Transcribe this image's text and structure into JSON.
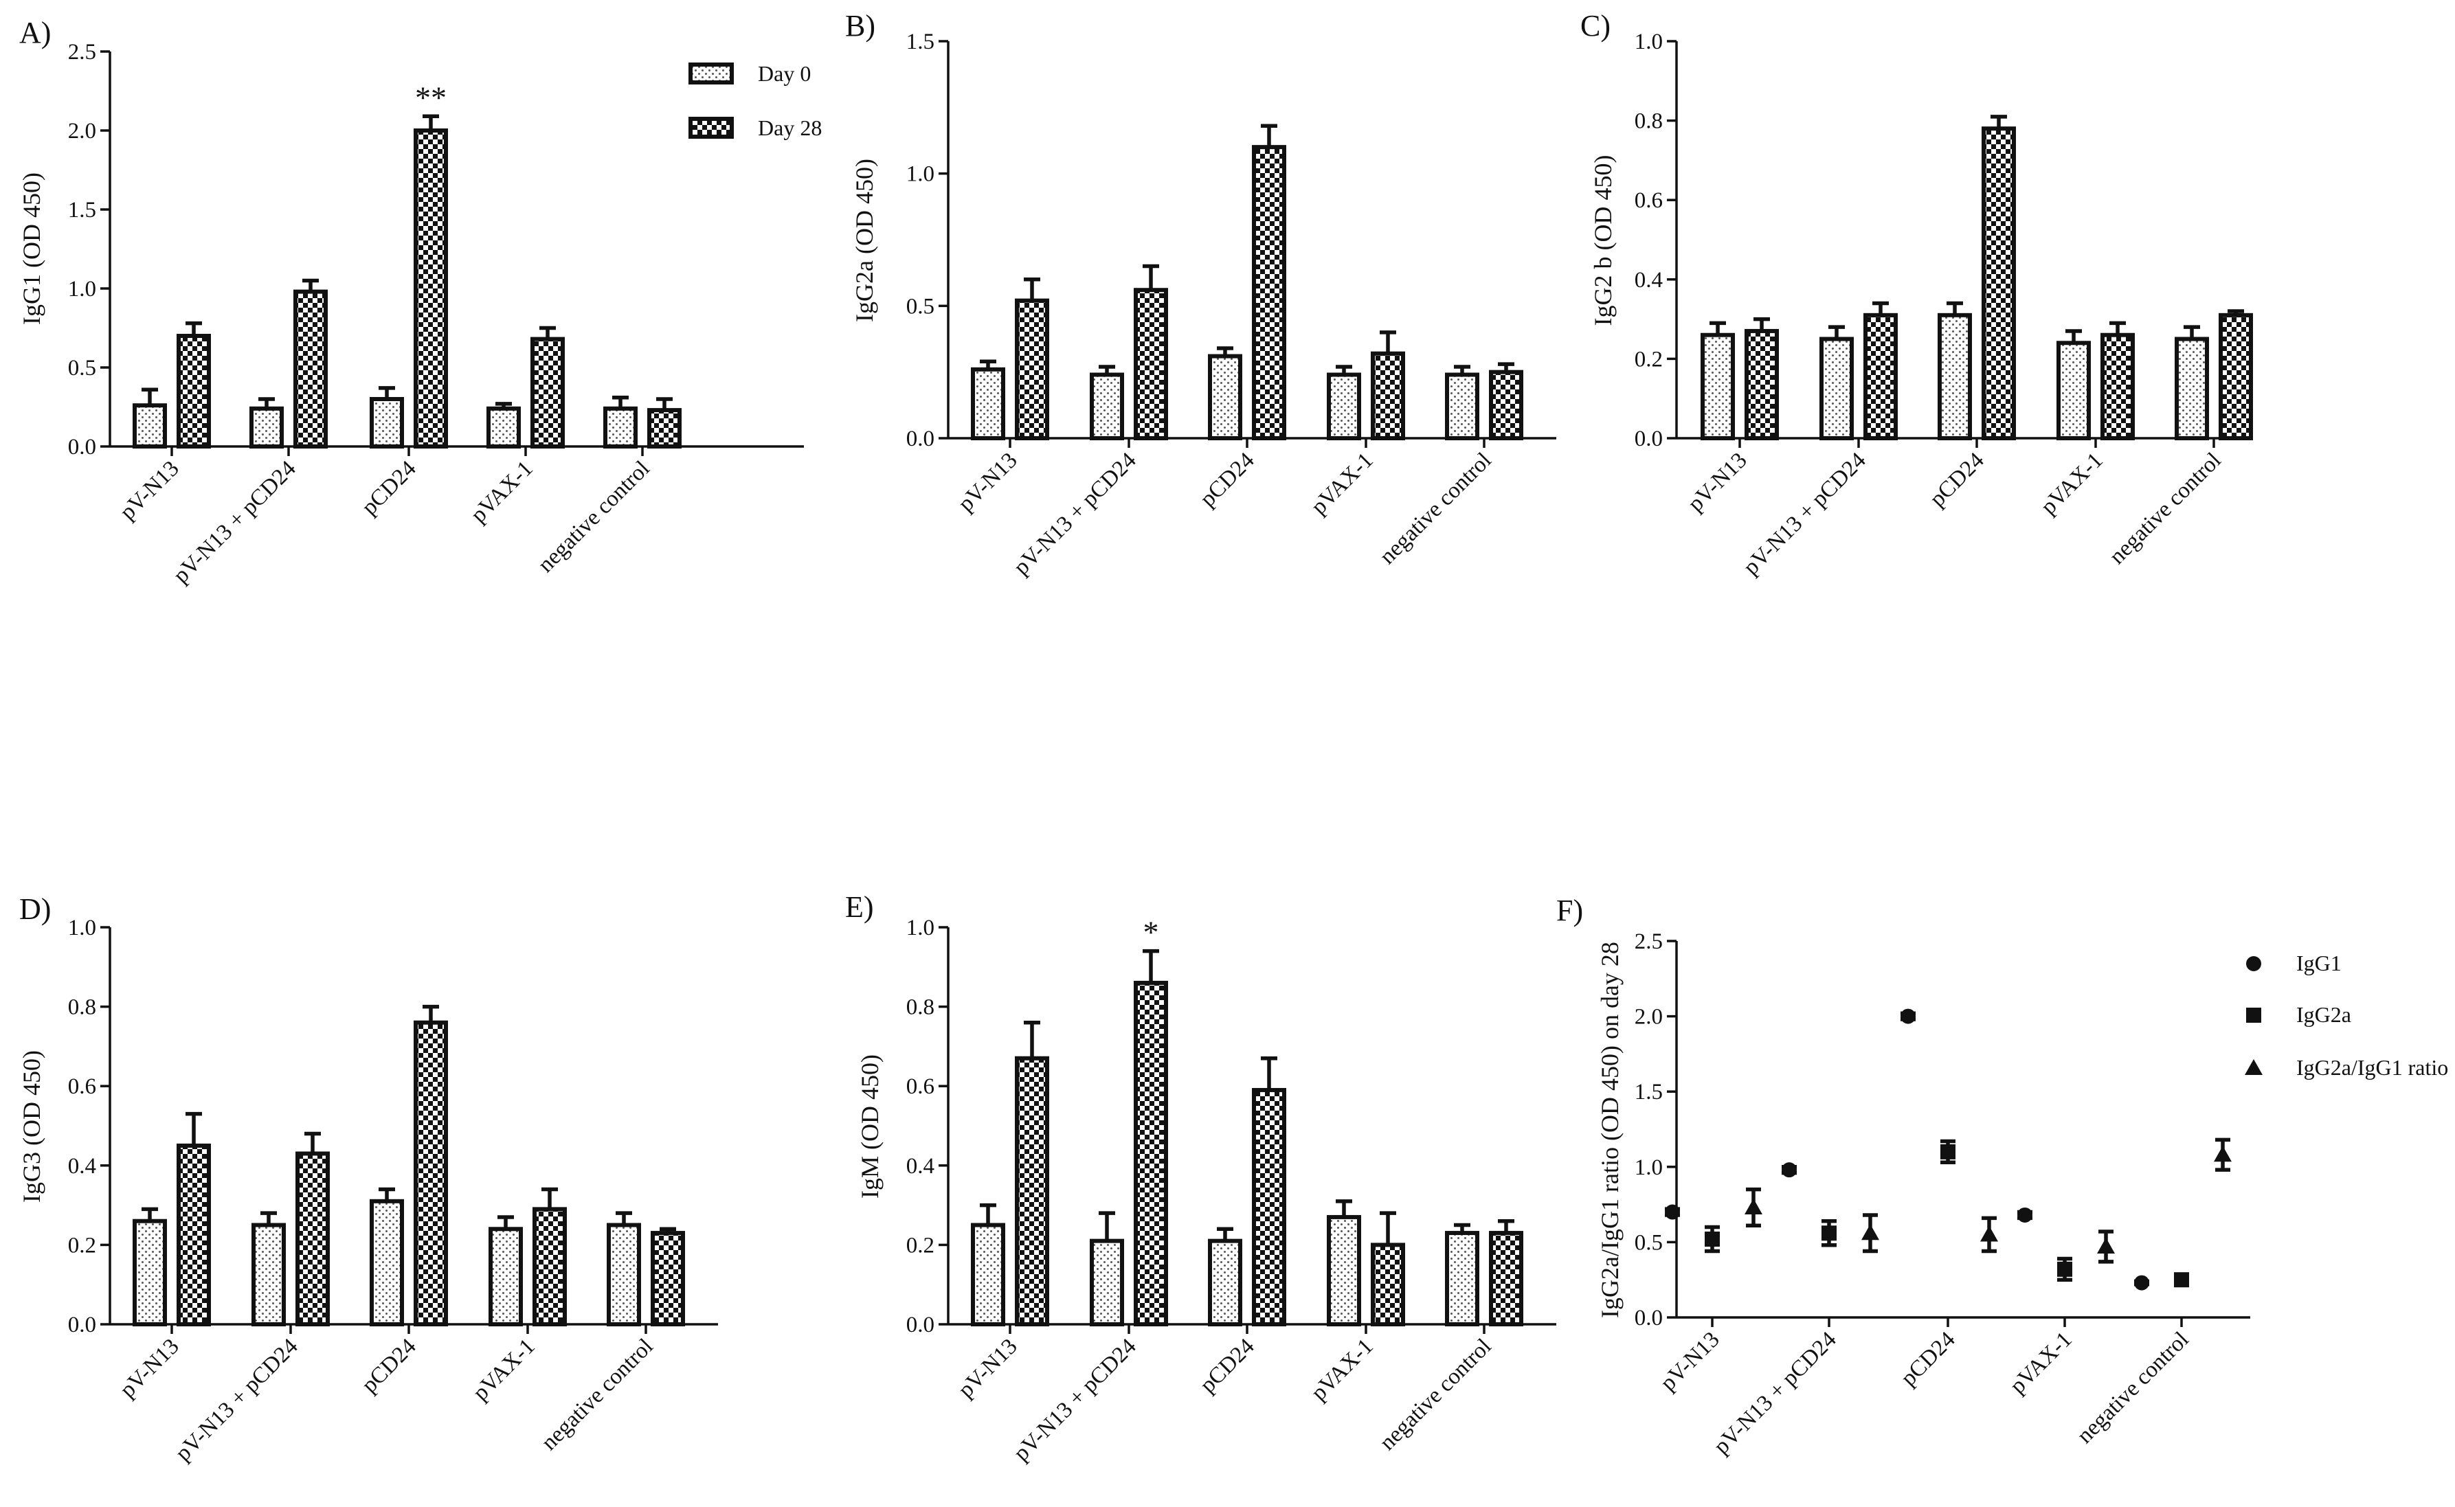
{
  "colors": {
    "ink": "#111111",
    "background": "#ffffff",
    "dot_pattern": "#555555",
    "check_pattern": "#111111"
  },
  "chart_data": [
    {
      "id": "A",
      "panel_label": "A)",
      "type": "bar",
      "ylabel": "IgG1 (OD 450)",
      "ylim": [
        0,
        2.5
      ],
      "yticks": [
        0.0,
        0.5,
        1.0,
        1.5,
        2.0,
        2.5
      ],
      "ytick_labels": [
        "0.0",
        "0.5",
        "1.0",
        "1.5",
        "2.0",
        "2.5"
      ],
      "categories": [
        "pV-N13",
        "pV-N13 + pCD24",
        "pCD24",
        "pVAX-1",
        "negative control"
      ],
      "series": [
        {
          "name": "Day 0",
          "pattern": "dots",
          "values": [
            0.26,
            0.24,
            0.3,
            0.24,
            0.24
          ],
          "errors": [
            0.1,
            0.06,
            0.07,
            0.03,
            0.07
          ]
        },
        {
          "name": "Day 28",
          "pattern": "checker",
          "values": [
            0.7,
            0.98,
            2.0,
            0.68,
            0.23
          ],
          "errors": [
            0.08,
            0.07,
            0.09,
            0.07,
            0.07
          ]
        }
      ],
      "annotations": [
        {
          "text": "**",
          "series": 1,
          "category": 2
        }
      ],
      "legend": {
        "entries": [
          "Day 0",
          "Day 28"
        ],
        "placement": "top-right"
      }
    },
    {
      "id": "B",
      "panel_label": "B)",
      "type": "bar",
      "ylabel": "IgG2a (OD 450)",
      "ylim": [
        0,
        1.5
      ],
      "yticks": [
        0.0,
        0.5,
        1.0,
        1.5
      ],
      "ytick_labels": [
        "0.0",
        "0.5",
        "1.0",
        "1.5"
      ],
      "categories": [
        "pV-N13",
        "pV-N13 + pCD24",
        "pCD24",
        "pVAX-1",
        "negative control"
      ],
      "series": [
        {
          "name": "Day 0",
          "pattern": "dots",
          "values": [
            0.26,
            0.24,
            0.31,
            0.24,
            0.24
          ],
          "errors": [
            0.03,
            0.03,
            0.03,
            0.03,
            0.03
          ]
        },
        {
          "name": "Day 28",
          "pattern": "checker",
          "values": [
            0.52,
            0.56,
            1.1,
            0.32,
            0.25
          ],
          "errors": [
            0.08,
            0.09,
            0.08,
            0.08,
            0.03
          ]
        }
      ],
      "annotations": []
    },
    {
      "id": "C",
      "panel_label": "C)",
      "type": "bar",
      "ylabel": "IgG2 b (OD 450)",
      "ylim": [
        0,
        1.0
      ],
      "yticks": [
        0.0,
        0.2,
        0.4,
        0.6,
        0.8,
        1.0
      ],
      "ytick_labels": [
        "0.0",
        "0.2",
        "0.4",
        "0.6",
        "0.8",
        "1.0"
      ],
      "categories": [
        "pV-N13",
        "pV-N13 + pCD24",
        "pCD24",
        "pVAX-1",
        "negative control"
      ],
      "series": [
        {
          "name": "Day 0",
          "pattern": "dots",
          "values": [
            0.26,
            0.25,
            0.31,
            0.24,
            0.25
          ],
          "errors": [
            0.03,
            0.03,
            0.03,
            0.03,
            0.03
          ]
        },
        {
          "name": "Day 28",
          "pattern": "checker",
          "values": [
            0.27,
            0.31,
            0.78,
            0.26,
            0.31
          ],
          "errors": [
            0.03,
            0.03,
            0.03,
            0.03,
            0.01
          ]
        }
      ],
      "annotations": []
    },
    {
      "id": "D",
      "panel_label": "D)",
      "type": "bar",
      "ylabel": "IgG3 (OD 450)",
      "ylim": [
        0,
        1.0
      ],
      "yticks": [
        0.0,
        0.2,
        0.4,
        0.6,
        0.8,
        1.0
      ],
      "ytick_labels": [
        "0.0",
        "0.2",
        "0.4",
        "0.6",
        "0.8",
        "1.0"
      ],
      "categories": [
        "pV-N13",
        "pV-N13 + pCD24",
        "pCD24",
        "pVAX-1",
        "negative control"
      ],
      "series": [
        {
          "name": "Day 0",
          "pattern": "dots",
          "values": [
            0.26,
            0.25,
            0.31,
            0.24,
            0.25
          ],
          "errors": [
            0.03,
            0.03,
            0.03,
            0.03,
            0.03
          ]
        },
        {
          "name": "Day 28",
          "pattern": "checker",
          "values": [
            0.45,
            0.43,
            0.76,
            0.29,
            0.23
          ],
          "errors": [
            0.08,
            0.05,
            0.04,
            0.05,
            0.01
          ]
        }
      ],
      "annotations": []
    },
    {
      "id": "E",
      "panel_label": "E)",
      "type": "bar",
      "ylabel": "IgM (OD 450)",
      "ylim": [
        0,
        1.0
      ],
      "yticks": [
        0.0,
        0.2,
        0.4,
        0.6,
        0.8,
        1.0
      ],
      "ytick_labels": [
        "0.0",
        "0.2",
        "0.4",
        "0.6",
        "0.8",
        "1.0"
      ],
      "categories": [
        "pV-N13",
        "pV-N13 + pCD24",
        "pCD24",
        "pVAX-1",
        "negative control"
      ],
      "series": [
        {
          "name": "Day 0",
          "pattern": "dots",
          "values": [
            0.25,
            0.21,
            0.21,
            0.27,
            0.23
          ],
          "errors": [
            0.05,
            0.07,
            0.03,
            0.04,
            0.02
          ]
        },
        {
          "name": "Day 28",
          "pattern": "checker",
          "values": [
            0.67,
            0.86,
            0.59,
            0.2,
            0.23
          ],
          "errors": [
            0.09,
            0.08,
            0.08,
            0.08,
            0.03
          ]
        }
      ],
      "annotations": [
        {
          "text": "*",
          "series": 1,
          "category": 1
        }
      ]
    },
    {
      "id": "F",
      "panel_label": "F)",
      "type": "scatter",
      "ylabel": "IgG2a/IgG1 ratio (OD 450)  on day 28",
      "ylim": [
        0,
        2.5
      ],
      "yticks": [
        0.0,
        0.5,
        1.0,
        1.5,
        2.0,
        2.5
      ],
      "ytick_labels": [
        "0.0",
        "0.5",
        "1.0",
        "1.5",
        "2.0",
        "2.5"
      ],
      "categories": [
        "pV-N13",
        "pV-N13 + pCD24",
        "pCD24",
        "pVAX-1",
        "negative control"
      ],
      "series": [
        {
          "name": "IgG1",
          "marker": "circle",
          "values": [
            0.7,
            0.98,
            2.0,
            0.68,
            0.23
          ],
          "errors": [
            0.02,
            0.02,
            0.02,
            0.02,
            0.01
          ]
        },
        {
          "name": "IgG2a",
          "marker": "square",
          "values": [
            0.52,
            0.56,
            1.1,
            0.32,
            0.25
          ],
          "errors": [
            0.08,
            0.08,
            0.07,
            0.07,
            0.02
          ]
        },
        {
          "name": "IgG2a/IgG1 ratio",
          "marker": "triangle",
          "values": [
            0.73,
            0.56,
            0.55,
            0.47,
            1.08
          ],
          "errors": [
            0.12,
            0.12,
            0.11,
            0.1,
            0.1
          ]
        }
      ],
      "legend": {
        "entries": [
          "IgG1",
          "IgG2a",
          "IgG2a/IgG1 ratio"
        ],
        "placement": "top-right"
      }
    }
  ]
}
